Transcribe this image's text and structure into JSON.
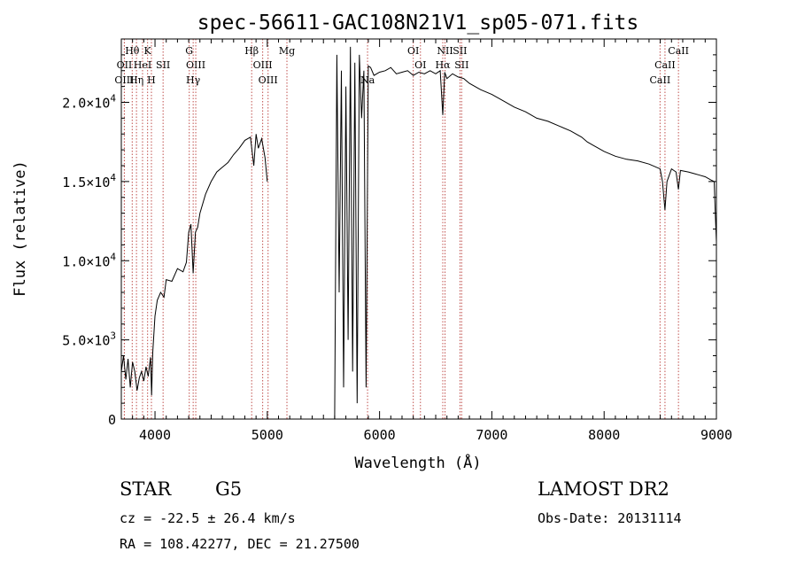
{
  "chart_data": {
    "type": "line",
    "title": "spec-56611-GAC108N21V1_sp05-071.fits",
    "xlabel": "Wavelength (Å)",
    "ylabel": "Flux (relative)",
    "xlim": [
      3700,
      9000
    ],
    "ylim": [
      0,
      24000
    ],
    "x_ticks": [
      {
        "value": 4000,
        "label": "4000"
      },
      {
        "value": 5000,
        "label": "5000"
      },
      {
        "value": 6000,
        "label": "6000"
      },
      {
        "value": 7000,
        "label": "7000"
      },
      {
        "value": 8000,
        "label": "8000"
      },
      {
        "value": 9000,
        "label": "9000"
      }
    ],
    "y_ticks": [
      {
        "value": 0,
        "label": "0"
      },
      {
        "value": 5000,
        "label": "5.0×10",
        "exp": "3"
      },
      {
        "value": 10000,
        "label": "1.0×10",
        "exp": "4"
      },
      {
        "value": 15000,
        "label": "1.5×10",
        "exp": "4"
      },
      {
        "value": 20000,
        "label": "2.0×10",
        "exp": "4"
      }
    ],
    "grid": false,
    "series": [
      {
        "color": "#000000",
        "x": [
          3700,
          3720,
          3740,
          3760,
          3780,
          3800,
          3820,
          3840,
          3860,
          3880,
          3900,
          3920,
          3940,
          3960,
          3970,
          3980,
          4000,
          4020,
          4050,
          4080,
          4100,
          4150,
          4200,
          4250,
          4280,
          4300,
          4320,
          4340,
          4360,
          4380,
          4400,
          4450,
          4500,
          4550,
          4600,
          4650,
          4700,
          4750,
          4800,
          4850,
          4880,
          4900,
          4920,
          4950,
          4980,
          5000,
          5005,
          5010,
          5050,
          5100,
          5150,
          5200,
          5250,
          5300,
          5350,
          5400,
          5450,
          5500,
          5550,
          5590,
          5600,
          5620,
          5640,
          5660,
          5680,
          5700,
          5720,
          5740,
          5760,
          5780,
          5800,
          5820,
          5840,
          5860,
          5880,
          5900,
          5920,
          5950,
          6000,
          6050,
          6100,
          6150,
          6200,
          6250,
          6300,
          6350,
          6400,
          6450,
          6500,
          6540,
          6563,
          6580,
          6600,
          6650,
          6700,
          6750,
          6800,
          6900,
          7000,
          7100,
          7200,
          7300,
          7400,
          7500,
          7600,
          7700,
          7800,
          7850,
          7900,
          8000,
          8100,
          8200,
          8300,
          8400,
          8498,
          8520,
          8542,
          8560,
          8600,
          8640,
          8662,
          8680,
          8750,
          8800,
          8850,
          8900,
          8950,
          8980,
          8990,
          9000
        ],
        "y": [
          3000,
          4000,
          2500,
          3800,
          2000,
          3600,
          3000,
          1800,
          2600,
          3000,
          2400,
          3300,
          2700,
          3900,
          1500,
          4200,
          6500,
          7500,
          8000,
          7700,
          8800,
          8700,
          9500,
          9300,
          9900,
          11800,
          12300,
          9200,
          11800,
          12100,
          13000,
          14200,
          15000,
          15600,
          15900,
          16200,
          16700,
          17100,
          17600,
          17800,
          16000,
          18000,
          17100,
          17700,
          16500,
          15000,
          null,
          null,
          null,
          null,
          null,
          null,
          null,
          null,
          null,
          null,
          null,
          null,
          null,
          null,
          0,
          23000,
          8000,
          22000,
          2000,
          21000,
          5000,
          23500,
          3000,
          22500,
          1000,
          23000,
          19000,
          22000,
          2000,
          22300,
          22200,
          21700,
          21900,
          22000,
          22200,
          21800,
          21900,
          22000,
          21700,
          21900,
          21800,
          22000,
          21800,
          22000,
          19200,
          21900,
          21500,
          21800,
          21600,
          21500,
          21200,
          20800,
          20500,
          20100,
          19700,
          19400,
          19000,
          18800,
          18500,
          18200,
          17800,
          17500,
          17300,
          16900,
          16600,
          16400,
          16300,
          16100,
          15800,
          15000,
          13200,
          15000,
          15800,
          15600,
          14500,
          15700,
          15600,
          15500,
          15400,
          15300,
          15100,
          15000,
          13000,
          11200
        ]
      }
    ],
    "spectral_lines": [
      {
        "name": "Hθ",
        "wavelength": 3797,
        "row": 0
      },
      {
        "name": "K",
        "wavelength": 3934,
        "row": 0
      },
      {
        "name": "G",
        "wavelength": 4305,
        "row": 0
      },
      {
        "name": "Hβ",
        "wavelength": 4861,
        "row": 0
      },
      {
        "name": "Mg",
        "wavelength": 5175,
        "row": 0
      },
      {
        "name": "OI",
        "wavelength": 6300,
        "row": 0
      },
      {
        "name": "NII",
        "wavelength": 6583,
        "row": 0
      },
      {
        "name": "SII",
        "wavelength": 6716,
        "row": 0
      },
      {
        "name": "CaII",
        "wavelength": 8662,
        "row": 0
      },
      {
        "name": "OII",
        "wavelength": 3727,
        "row": 1
      },
      {
        "name": "HeI",
        "wavelength": 3889,
        "row": 1
      },
      {
        "name": "SII",
        "wavelength": 4072,
        "row": 1
      },
      {
        "name": "OIII",
        "wavelength": 4363,
        "row": 1
      },
      {
        "name": "OIII",
        "wavelength": 4959,
        "row": 1
      },
      {
        "name": "OI",
        "wavelength": 6364,
        "row": 1
      },
      {
        "name": "Hα",
        "wavelength": 6563,
        "row": 1
      },
      {
        "name": "SII",
        "wavelength": 6731,
        "row": 1
      },
      {
        "name": "CaII",
        "wavelength": 8542,
        "row": 1
      },
      {
        "name": "OIII",
        "wavelength": 3727,
        "row": 2
      },
      {
        "name": "Hη",
        "wavelength": 3835,
        "row": 2
      },
      {
        "name": "H",
        "wavelength": 3968,
        "row": 2
      },
      {
        "name": "Hγ",
        "wavelength": 4340,
        "row": 2
      },
      {
        "name": "OIII",
        "wavelength": 5007,
        "row": 2
      },
      {
        "name": "Na",
        "wavelength": 5893,
        "row": 2
      },
      {
        "name": "CaII",
        "wavelength": 8498,
        "row": 2
      }
    ],
    "line_color": "#c0504d"
  },
  "info": {
    "object_type": "STAR",
    "subclass": "G5",
    "survey": "LAMOST DR2",
    "redshift": "cz = -22.5 ± 26.4 km/s",
    "obs_date": "Obs-Date: 20131114",
    "coords": "RA = 108.42277, DEC =  21.27500"
  }
}
